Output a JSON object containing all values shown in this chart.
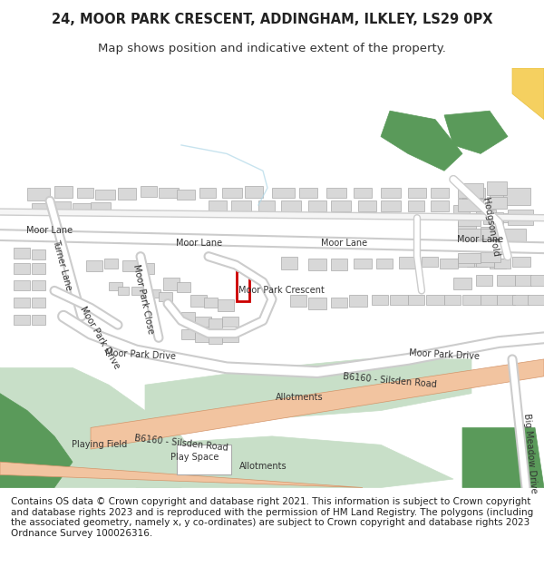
{
  "title_line1": "24, MOOR PARK CRESCENT, ADDINGHAM, ILKLEY, LS29 0PX",
  "title_line2": "Map shows position and indicative extent of the property.",
  "footer": "Contains OS data © Crown copyright and database right 2021. This information is subject to Crown copyright and database rights 2023 and is reproduced with the permission of HM Land Registry. The polygons (including the associated geometry, namely x, y co-ordinates) are subject to Crown copyright and database rights 2023 Ordnance Survey 100026316.",
  "bg_color": "#ffffff",
  "map_bg": "#f8f8f8",
  "road_color": "#e8e8e8",
  "road_outline": "#cccccc",
  "building_color": "#d8d8d8",
  "building_outline": "#aaaaaa",
  "green_light": "#c8dfc8",
  "green_dark": "#5a9a5a",
  "road_b6160_color": "#f2c4a0",
  "road_b6160_outline": "#d4956a",
  "highlight_color": "#cc0000",
  "water_color": "#a8d4e8",
  "title_fontsize": 10.5,
  "subtitle_fontsize": 9.5,
  "footer_fontsize": 7.5,
  "label_fontsize": 7.0
}
